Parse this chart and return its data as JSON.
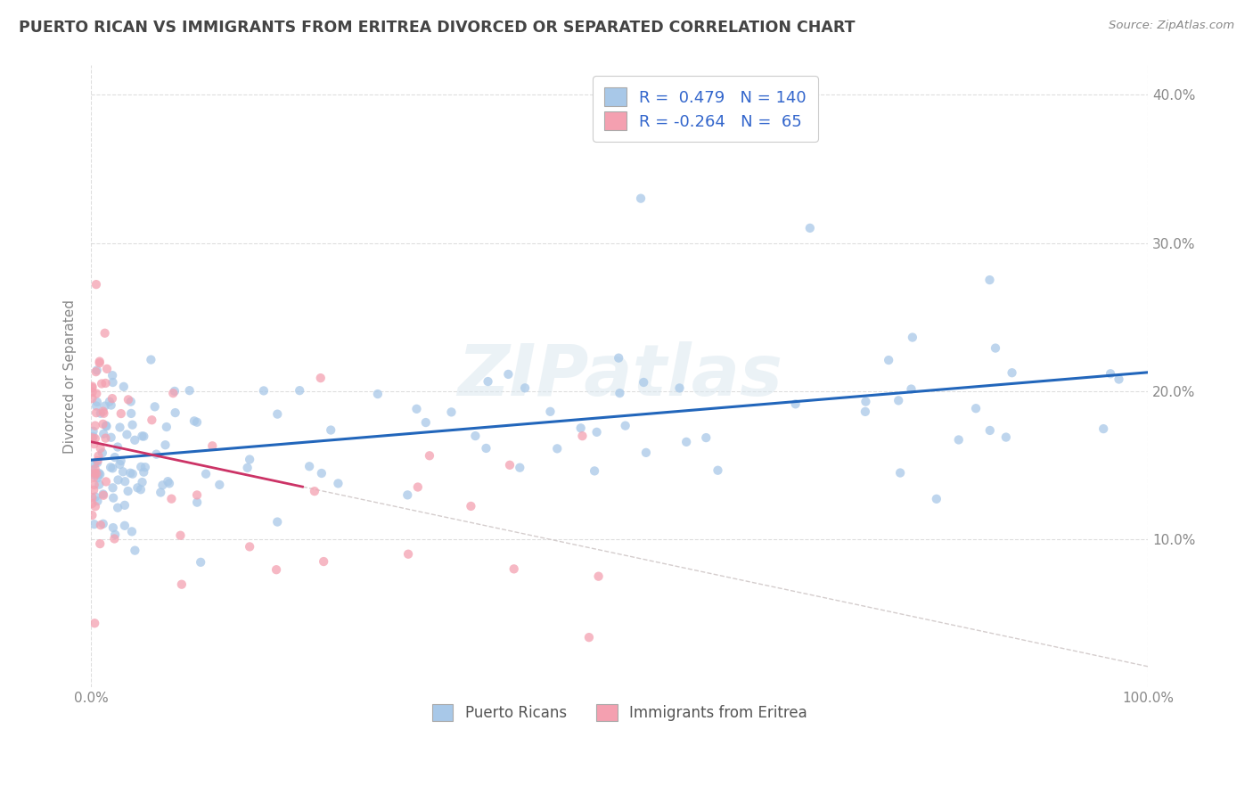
{
  "title": "PUERTO RICAN VS IMMIGRANTS FROM ERITREA DIVORCED OR SEPARATED CORRELATION CHART",
  "source": "Source: ZipAtlas.com",
  "ylabel": "Divorced or Separated",
  "watermark": "ZIPatlas",
  "blue_r": 0.479,
  "blue_n": 140,
  "pink_r": -0.264,
  "pink_n": 65,
  "blue_color": "#a8c8e8",
  "pink_color": "#f4a0b0",
  "blue_line_color": "#2266bb",
  "pink_line_color": "#cc3366",
  "dash_line_color": "#d0c8c8",
  "background_color": "#ffffff",
  "grid_color": "#c8c8c8",
  "title_color": "#444444",
  "source_color": "#888888",
  "axis_label_color": "#888888",
  "xlim": [
    0,
    100
  ],
  "ylim": [
    0,
    42
  ],
  "blue_line_y0": 14.0,
  "blue_line_y100": 20.0,
  "pink_line_y0": 17.5,
  "pink_line_slope": -0.12,
  "pink_line_xmax": 20
}
